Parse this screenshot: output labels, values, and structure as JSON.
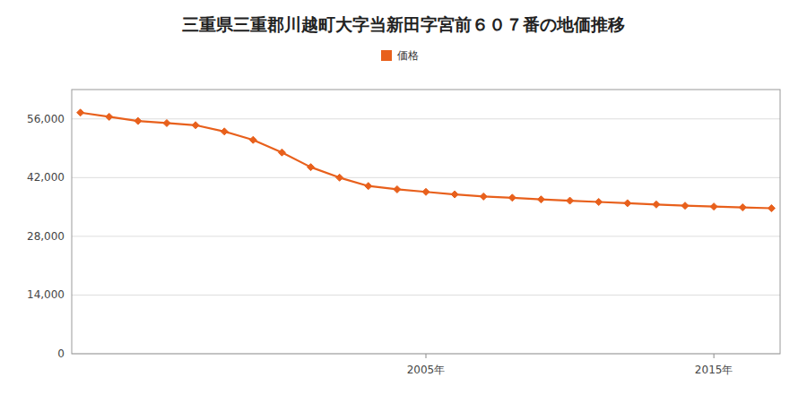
{
  "chart_data": {
    "type": "line",
    "title": "三重県三重郡川越町大字当新田字宮前６０７番の地価推移",
    "x": [
      1993,
      1994,
      1995,
      1996,
      1997,
      1998,
      1999,
      2000,
      2001,
      2002,
      2003,
      2004,
      2005,
      2006,
      2007,
      2008,
      2009,
      2010,
      2011,
      2012,
      2013,
      2014,
      2015,
      2016,
      2017
    ],
    "series": [
      {
        "name": "価格",
        "color": "#E8601C",
        "marker": "diamond",
        "line_style": "solid",
        "values": [
          57500,
          56500,
          55500,
          55000,
          54500,
          53000,
          51000,
          48000,
          44500,
          42000,
          40000,
          39200,
          38600,
          38000,
          37500,
          37200,
          36800,
          36500,
          36200,
          35900,
          35600,
          35300,
          35100,
          34900,
          34700
        ]
      }
    ],
    "xlim": [
      1992.7,
      2017.3
    ],
    "xticks": [
      {
        "value": 2005,
        "label": "2005年"
      },
      {
        "value": 2015,
        "label": "2015年"
      }
    ],
    "ylim": [
      0,
      63000
    ],
    "yticks": [
      0,
      {
        "value": 14000,
        "label": "14,000"
      },
      {
        "value": 28000,
        "label": "28,000"
      },
      {
        "value": 42000,
        "label": "42,000"
      },
      {
        "value": 56000,
        "label": "56,000"
      }
    ],
    "grid": true,
    "legend": "top"
  }
}
